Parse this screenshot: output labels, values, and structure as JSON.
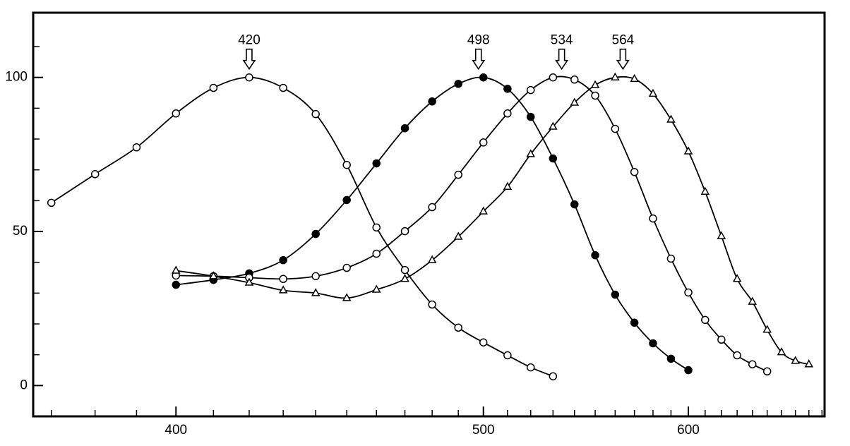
{
  "chart_data": {
    "type": "line",
    "xscale": "reciprocal",
    "xlim": [
      366,
      692
    ],
    "ylim": [
      -10,
      121
    ],
    "xticks": [
      400,
      500,
      600
    ],
    "xticks_minor": [
      370,
      380,
      390,
      410,
      420,
      430,
      440,
      450,
      460,
      470,
      480,
      490,
      510,
      520,
      530,
      540,
      550,
      560,
      570,
      580,
      590,
      610,
      620,
      630,
      640,
      650,
      660,
      670,
      680,
      690
    ],
    "yticks": [
      0,
      50,
      100
    ],
    "yticks_minor": [
      10,
      20,
      30,
      40,
      60,
      70,
      80,
      90,
      110
    ],
    "peaks": [
      420,
      498,
      534,
      564
    ],
    "peak_level": 100,
    "series": [
      {
        "color": "#000000",
        "marker": "open-circle",
        "x": [
          370,
          380,
          390,
          400,
          410,
          420,
          430,
          440,
          450,
          460,
          470,
          480,
          490,
          500,
          510,
          520,
          530
        ],
        "values": [
          59.3,
          68.6,
          77.3,
          88.3,
          96.6,
          100,
          96.6,
          88.1,
          71.6,
          51.3,
          37.5,
          26.3,
          18.8,
          14.0,
          9.8,
          5.9,
          3.0
        ]
      },
      {
        "color": "#000000",
        "marker": "filled-circle",
        "x": [
          400,
          410,
          420,
          430,
          440,
          450,
          460,
          470,
          480,
          490,
          500,
          510,
          520,
          530,
          540,
          550,
          560,
          570,
          580,
          590,
          600
        ],
        "values": [
          32.7,
          34.3,
          36.4,
          40.7,
          49.2,
          60.2,
          72.1,
          83.5,
          92.2,
          97.9,
          100,
          96.3,
          87.2,
          73.7,
          58.8,
          42.3,
          29.5,
          20.4,
          13.7,
          8.7,
          5.0
        ]
      },
      {
        "color": "#000000",
        "marker": "open-circle",
        "x": [
          400,
          410,
          420,
          430,
          440,
          450,
          460,
          470,
          480,
          490,
          500,
          510,
          520,
          530,
          540,
          550,
          560,
          570,
          580,
          590,
          600,
          610,
          620,
          630,
          640,
          650
        ],
        "values": [
          35.7,
          35.5,
          35.0,
          34.6,
          35.5,
          38.2,
          42.8,
          50.1,
          57.9,
          68.4,
          78.9,
          88.3,
          95.9,
          100,
          99.3,
          94.1,
          83.3,
          69.3,
          54.2,
          41.2,
          30.2,
          21.3,
          14.9,
          9.8,
          6.9,
          4.6
        ]
      },
      {
        "color": "#000000",
        "marker": "open-triangle",
        "x": [
          400,
          410,
          420,
          430,
          440,
          450,
          460,
          470,
          480,
          490,
          500,
          510,
          520,
          530,
          540,
          550,
          560,
          570,
          580,
          590,
          600,
          610,
          620,
          630,
          640,
          650,
          660,
          670,
          680
        ],
        "values": [
          37.3,
          35.5,
          33.4,
          30.9,
          30.0,
          28.4,
          31.1,
          34.6,
          40.7,
          48.3,
          56.5,
          64.5,
          75.1,
          84.0,
          91.8,
          97.5,
          100,
          99.5,
          94.7,
          86.3,
          76.0,
          62.9,
          48.5,
          34.6,
          27.2,
          18.1,
          10.8,
          8.0,
          6.9
        ]
      }
    ]
  }
}
